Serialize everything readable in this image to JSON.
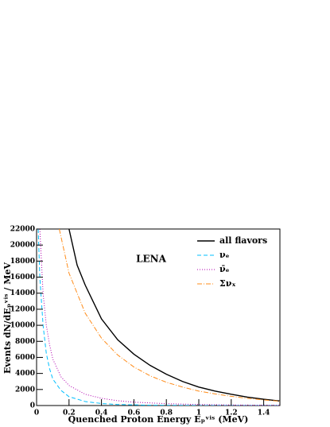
{
  "chart_data": {
    "type": "line",
    "annotation": "LENA",
    "x_label": "Quenched Proton Energy Eₚᵛⁱˢ (MeV)",
    "y_label": "Events  dN/dEₚᵛⁱˢ / MeV",
    "xlim": [
      0,
      1.5
    ],
    "ylim": [
      0,
      22000
    ],
    "xticks": [
      0,
      0.2,
      0.4,
      0.6,
      0.8,
      1,
      1.2,
      1.4
    ],
    "yticks": [
      0,
      2000,
      4000,
      6000,
      8000,
      10000,
      12000,
      14000,
      16000,
      18000,
      20000,
      22000
    ],
    "legend": "upper right",
    "series": [
      {
        "name": "all flavors",
        "color": "#000000",
        "dash": "solid",
        "x": [
          0.2,
          0.25,
          0.3,
          0.4,
          0.5,
          0.6,
          0.7,
          0.8,
          0.9,
          1.0,
          1.1,
          1.2,
          1.3,
          1.4,
          1.5
        ],
        "values": [
          22000,
          17500,
          15000,
          10800,
          8200,
          6400,
          5000,
          3900,
          3000,
          2300,
          1800,
          1400,
          1050,
          780,
          560
        ]
      },
      {
        "name": "νₑ",
        "color": "#00bfff",
        "dash": "dashed",
        "x": [
          0.01,
          0.02,
          0.04,
          0.06,
          0.08,
          0.1,
          0.15,
          0.2,
          0.3,
          0.4,
          0.5,
          0.7,
          1.0,
          1.5
        ],
        "values": [
          22000,
          16000,
          10000,
          6500,
          4600,
          3300,
          1900,
          1100,
          500,
          250,
          130,
          40,
          5,
          0
        ]
      },
      {
        "name": "ν̄ₑ",
        "color": "#b000b0",
        "dash": "dotted",
        "x": [
          0.02,
          0.04,
          0.06,
          0.08,
          0.1,
          0.15,
          0.2,
          0.3,
          0.4,
          0.5,
          0.6,
          0.8,
          1.0,
          1.2,
          1.5
        ],
        "values": [
          22000,
          14000,
          10000,
          7600,
          5800,
          3600,
          2500,
          1400,
          900,
          600,
          420,
          230,
          130,
          70,
          30
        ]
      },
      {
        "name": "Σνₓ",
        "color": "#ff8c1a",
        "dash": "dashdot",
        "x": [
          0.14,
          0.2,
          0.3,
          0.4,
          0.5,
          0.6,
          0.7,
          0.8,
          0.9,
          1.0,
          1.1,
          1.2,
          1.3,
          1.4,
          1.5
        ],
        "values": [
          22000,
          16500,
          11500,
          8400,
          6300,
          4800,
          3700,
          2900,
          2300,
          1800,
          1450,
          1150,
          900,
          700,
          540
        ]
      }
    ]
  }
}
